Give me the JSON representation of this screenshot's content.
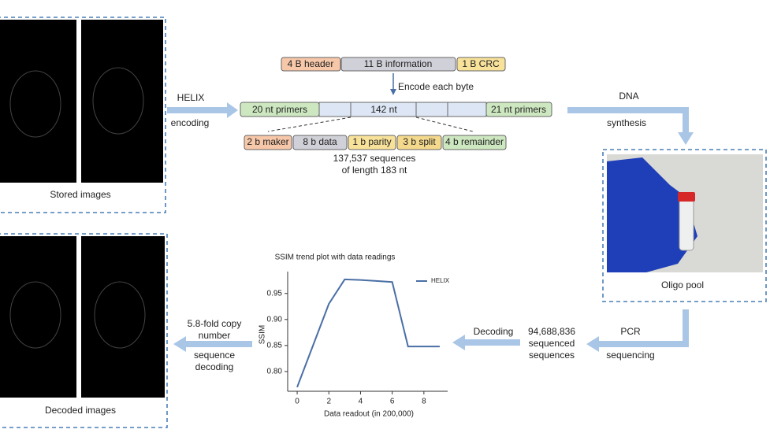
{
  "stored_images": {
    "caption": "Stored images"
  },
  "encoding": [
    "HELIX",
    "encoding"
  ],
  "header_row": [
    "4 B header",
    "11 B information",
    "1 B CRC"
  ],
  "encode_label": "Encode each byte",
  "sequence_row": {
    "left": "20 nt primers",
    "middle": "142 nt",
    "right": "21 nt primers"
  },
  "byte_row": [
    "2 b maker",
    "8 b data",
    "1 b parity",
    "3 b split",
    "4 b remainder"
  ],
  "sequence_count": [
    "137,537 sequences",
    "of length 183 nt"
  ],
  "synthesis": [
    "DNA",
    "synthesis"
  ],
  "oligo_pool": {
    "caption": "Oligo pool"
  },
  "sequencing": [
    "PCR",
    "sequencing"
  ],
  "read_count": [
    "94,688,836",
    "sequenced",
    "sequences"
  ],
  "decoding": "Decoding",
  "chart": {
    "type": "line",
    "title": "SSIM trend plot with data readings",
    "x_label": "Data readout (in 200,000)",
    "y_label": "SSIM",
    "x": [
      0,
      1,
      2,
      3,
      4,
      5,
      6,
      7,
      8,
      9
    ],
    "series": [
      {
        "name": "HELIX",
        "color": "#4a6fa5",
        "values": [
          0.77,
          0.85,
          0.93,
          0.977,
          0.976,
          0.974,
          0.972,
          0.848,
          0.848,
          0.848
        ]
      }
    ],
    "xlim": [
      -0.6,
      9.5
    ],
    "ylim": [
      0.762,
      0.992
    ],
    "xticks": [
      0,
      2,
      4,
      6,
      8
    ],
    "yticks": [
      {
        "value": 0.8,
        "label": "0.80"
      },
      0.85,
      {
        "value": 0.9,
        "label": "0.90"
      },
      0.95
    ],
    "legend": "upper right"
  },
  "copy_decoding": [
    "5.8-fold copy",
    "number",
    "sequence",
    "decoding"
  ],
  "decoded_images": {
    "caption": "Decoded images"
  }
}
